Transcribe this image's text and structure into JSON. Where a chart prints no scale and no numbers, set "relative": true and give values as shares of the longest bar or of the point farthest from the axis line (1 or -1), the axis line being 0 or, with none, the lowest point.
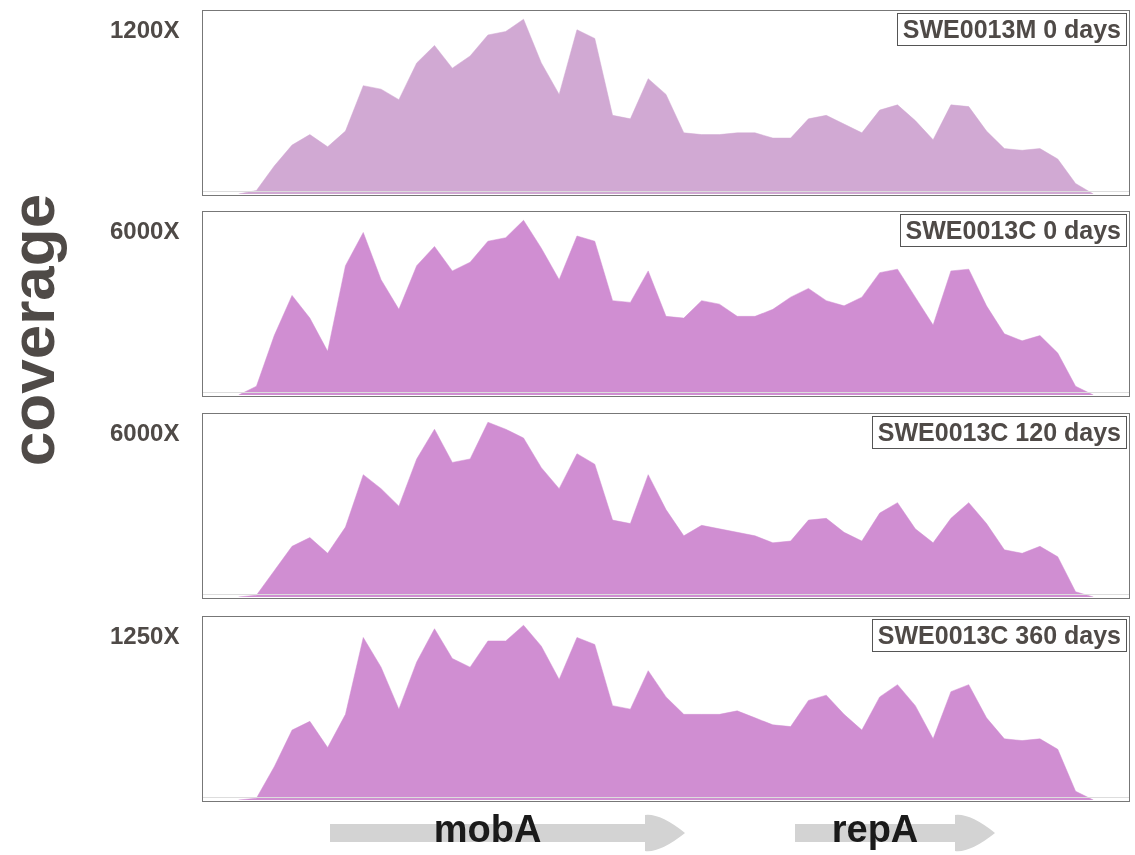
{
  "chart_data": [
    {
      "type": "area",
      "title": "SWE0013M 0 days",
      "ylabel": "coverage",
      "relative": true,
      "legend": false,
      "annotations": [
        "1200X"
      ],
      "categories": [
        null,
        null,
        null,
        null,
        null,
        null,
        null,
        null,
        null,
        null,
        null,
        null,
        null,
        null,
        null,
        null,
        null,
        null,
        null,
        null,
        null,
        null,
        null,
        null,
        null,
        null,
        null,
        null,
        null,
        null,
        null,
        null,
        null,
        null,
        null,
        null,
        null,
        null,
        null,
        null,
        null,
        null,
        null,
        null,
        null,
        null,
        null,
        null,
        null,
        null,
        null,
        null,
        null
      ],
      "series": [
        {
          "color": "#d1a9d3",
          "values": [
            null,
            null,
            0,
            0.02,
            0.16,
            0.28,
            0.34,
            0.27,
            0.36,
            0.62,
            0.6,
            0.54,
            0.75,
            0.85,
            0.72,
            0.79,
            0.91,
            0.93,
            1,
            0.75,
            0.57,
            0.94,
            0.89,
            0.45,
            0.43,
            0.66,
            0.57,
            0.35,
            0.34,
            0.34,
            0.35,
            0.35,
            0.32,
            0.32,
            0.43,
            0.45,
            0.4,
            0.35,
            0.48,
            0.51,
            0.42,
            0.31,
            0.51,
            0.5,
            0.36,
            0.26,
            0.25,
            0.26,
            0.2,
            0.06,
            0,
            null,
            null
          ]
        }
      ]
    },
    {
      "type": "area",
      "title": "SWE0013C 0 days",
      "relative": true,
      "legend": false,
      "annotations": [
        "6000X"
      ],
      "categories": [
        null,
        null,
        null,
        null,
        null,
        null,
        null,
        null,
        null,
        null,
        null,
        null,
        null,
        null,
        null,
        null,
        null,
        null,
        null,
        null,
        null,
        null,
        null,
        null,
        null,
        null,
        null,
        null,
        null,
        null,
        null,
        null,
        null,
        null,
        null,
        null,
        null,
        null,
        null,
        null,
        null,
        null,
        null,
        null,
        null,
        null,
        null,
        null,
        null,
        null,
        null,
        null,
        null
      ],
      "series": [
        {
          "color": "#d08ed2",
          "values": [
            null,
            null,
            0,
            0.05,
            0.34,
            0.57,
            0.44,
            0.25,
            0.74,
            0.93,
            0.66,
            0.49,
            0.74,
            0.85,
            0.71,
            0.76,
            0.88,
            0.9,
            1,
            0.84,
            0.66,
            0.91,
            0.88,
            0.54,
            0.53,
            0.71,
            0.45,
            0.44,
            0.54,
            0.52,
            0.45,
            0.45,
            0.49,
            0.56,
            0.61,
            0.54,
            0.51,
            0.56,
            0.7,
            0.72,
            0.56,
            0.4,
            0.71,
            0.72,
            0.51,
            0.35,
            0.31,
            0.34,
            0.24,
            0.05,
            0,
            null,
            null
          ]
        }
      ]
    },
    {
      "type": "area",
      "title": "SWE0013C 120 days",
      "relative": true,
      "legend": false,
      "annotations": [
        "6000X"
      ],
      "categories": [
        null,
        null,
        null,
        null,
        null,
        null,
        null,
        null,
        null,
        null,
        null,
        null,
        null,
        null,
        null,
        null,
        null,
        null,
        null,
        null,
        null,
        null,
        null,
        null,
        null,
        null,
        null,
        null,
        null,
        null,
        null,
        null,
        null,
        null,
        null,
        null,
        null,
        null,
        null,
        null,
        null,
        null,
        null,
        null,
        null,
        null,
        null,
        null,
        null,
        null,
        null,
        null,
        null
      ],
      "series": [
        {
          "color": "#d08ed2",
          "values": [
            null,
            null,
            0,
            0.01,
            0.15,
            0.29,
            0.34,
            0.25,
            0.4,
            0.7,
            0.62,
            0.52,
            0.79,
            0.96,
            0.77,
            0.79,
            1,
            0.96,
            0.91,
            0.74,
            0.62,
            0.82,
            0.76,
            0.44,
            0.42,
            0.7,
            0.5,
            0.35,
            0.41,
            0.39,
            0.37,
            0.35,
            0.31,
            0.32,
            0.44,
            0.45,
            0.37,
            0.32,
            0.48,
            0.54,
            0.39,
            0.31,
            0.45,
            0.54,
            0.42,
            0.27,
            0.25,
            0.29,
            0.23,
            0.03,
            0,
            null,
            null
          ]
        }
      ]
    },
    {
      "type": "area",
      "title": "SWE0013C 360 days",
      "relative": true,
      "legend": false,
      "annotations": [
        "1250X",
        "mobA",
        "repA"
      ],
      "categories": [
        null,
        null,
        null,
        null,
        null,
        null,
        null,
        null,
        null,
        null,
        null,
        null,
        null,
        null,
        null,
        null,
        null,
        null,
        null,
        null,
        null,
        null,
        null,
        null,
        null,
        null,
        null,
        null,
        null,
        null,
        null,
        null,
        null,
        null,
        null,
        null,
        null,
        null,
        null,
        null,
        null,
        null,
        null,
        null,
        null,
        null,
        null,
        null,
        null,
        null,
        null,
        null,
        null
      ],
      "series": [
        {
          "color": "#d08ed2",
          "values": [
            null,
            null,
            0,
            0.01,
            0.19,
            0.4,
            0.45,
            0.3,
            0.49,
            0.93,
            0.76,
            0.52,
            0.79,
            0.98,
            0.81,
            0.76,
            0.91,
            0.91,
            1,
            0.88,
            0.69,
            0.93,
            0.89,
            0.54,
            0.52,
            0.74,
            0.59,
            0.49,
            0.49,
            0.49,
            0.51,
            0.47,
            0.43,
            0.42,
            0.57,
            0.6,
            0.49,
            0.4,
            0.59,
            0.66,
            0.54,
            0.35,
            0.62,
            0.66,
            0.47,
            0.35,
            0.34,
            0.35,
            0.29,
            0.05,
            0,
            null,
            null
          ]
        }
      ]
    }
  ]
}
